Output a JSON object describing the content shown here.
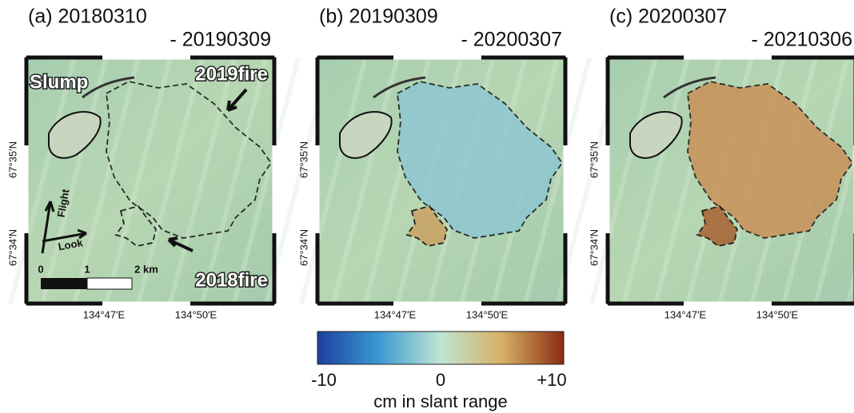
{
  "panels": [
    {
      "title": "(a) 20180310",
      "subtitle": "- 20190309",
      "lat_labels": [
        "67°35′N",
        "67°34′N"
      ],
      "lon_labels": [
        "134°47′E",
        "134°50′E"
      ]
    },
    {
      "title": "(b) 20190309",
      "subtitle": "- 20200307",
      "lat_labels": [
        "67°35′N",
        "67°34′N"
      ],
      "lon_labels": [
        "134°47′E",
        "134°50′E"
      ]
    },
    {
      "title": "(c) 20200307",
      "subtitle": "- 20210306",
      "lat_labels": [
        "67°35′N",
        "67°34′N"
      ],
      "lon_labels": [
        "134°47′E",
        "134°50′E"
      ]
    }
  ],
  "annotations": {
    "slump": "Slump",
    "fire_2019": "2019fire",
    "fire_2018": "2018fire",
    "flight": "Flight",
    "look": "Look",
    "scale": [
      "0",
      "1",
      "2 km"
    ]
  },
  "colorbar": {
    "ticks": [
      "-10",
      "0",
      "+10"
    ],
    "label": "cm in slant range"
  }
}
